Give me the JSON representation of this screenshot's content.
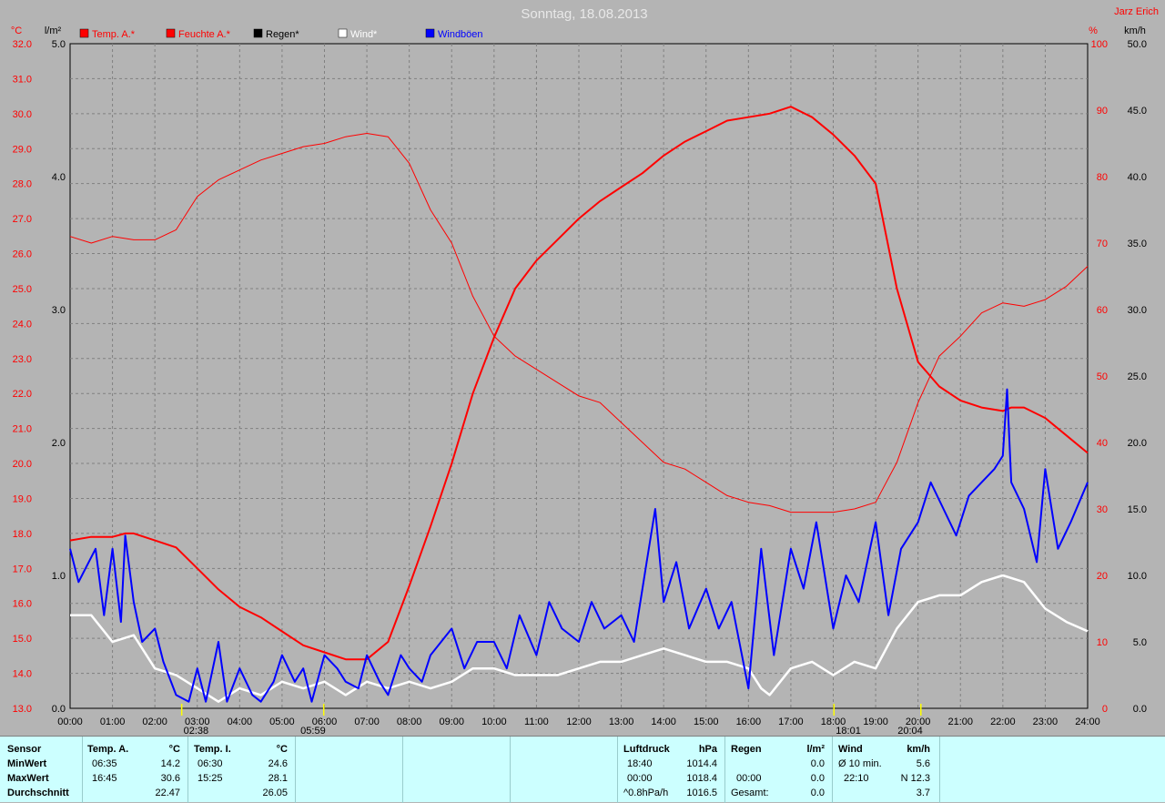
{
  "title": "Sonntag, 18.08.2013",
  "author": "Jarz Erich",
  "colors": {
    "background": "#b4b4b4",
    "temp": "#ff0000",
    "humidity": "#ff0000",
    "rain": "#000000",
    "wind": "#ffffff",
    "gusts": "#0000ff",
    "grid": "#808080",
    "stats_bg": "#ccffff"
  },
  "chart_data": {
    "type": "line",
    "x_ticks": [
      "00:00",
      "01:00",
      "02:00",
      "03:00",
      "04:00",
      "05:00",
      "06:00",
      "07:00",
      "08:00",
      "09:00",
      "10:00",
      "11:00",
      "12:00",
      "13:00",
      "14:00",
      "15:00",
      "16:00",
      "17:00",
      "18:00",
      "19:00",
      "20:00",
      "21:00",
      "22:00",
      "23:00",
      "24:00"
    ],
    "axes": {
      "temp": {
        "label": "°C",
        "min": 13,
        "max": 32,
        "ticks": [
          "13.0",
          "14.0",
          "15.0",
          "16.0",
          "17.0",
          "18.0",
          "19.0",
          "20.0",
          "21.0",
          "22.0",
          "23.0",
          "24.0",
          "25.0",
          "26.0",
          "27.0",
          "28.0",
          "29.0",
          "30.0",
          "31.0",
          "32.0"
        ]
      },
      "rain": {
        "label": "l/m²",
        "min": 0,
        "max": 5,
        "ticks": [
          "0.0",
          "1.0",
          "2.0",
          "3.0",
          "4.0",
          "5.0"
        ]
      },
      "humidity": {
        "label": "%",
        "min": 0,
        "max": 100,
        "ticks": [
          "0",
          "10",
          "20",
          "30",
          "40",
          "50",
          "60",
          "70",
          "80",
          "90",
          "100"
        ]
      },
      "wind": {
        "label": "km/h",
        "min": 0,
        "max": 50,
        "ticks": [
          "0.0",
          "5.0",
          "10.0",
          "15.0",
          "20.0",
          "25.0",
          "30.0",
          "35.0",
          "40.0",
          "45.0",
          "50.0"
        ]
      }
    },
    "legend": [
      {
        "label": "Temp. A.*",
        "color": "#ff0000"
      },
      {
        "label": "Feuchte A.*",
        "color": "#ff0000"
      },
      {
        "label": "Regen*",
        "color": "#000000"
      },
      {
        "label": "Wind*",
        "color": "#ffffff"
      },
      {
        "label": "Windböen",
        "color": "#0000ff"
      }
    ],
    "events": [
      {
        "label": "02:38",
        "hour": 2.633
      },
      {
        "label": "05:59",
        "hour": 5.983
      },
      {
        "label": "18:01",
        "hour": 18.017
      },
      {
        "label": "20:04",
        "hour": 20.067
      }
    ],
    "series": [
      {
        "name": "Temp. A.",
        "color": "#ff0000",
        "axis": "temp",
        "width": 2,
        "x": [
          0,
          0.5,
          1,
          1.3,
          1.5,
          2,
          2.5,
          3,
          3.5,
          4,
          4.5,
          5,
          5.5,
          6,
          6.5,
          7,
          7.5,
          8,
          8.5,
          9,
          9.5,
          10,
          10.5,
          11,
          11.5,
          12,
          12.5,
          13,
          13.5,
          14,
          14.5,
          15,
          15.5,
          16,
          16.5,
          17,
          17.5,
          18,
          18.5,
          19,
          19.5,
          20,
          20.5,
          21,
          21.5,
          22,
          22.2,
          22.5,
          23,
          23.5,
          24
        ],
        "y": [
          17.8,
          17.9,
          17.9,
          18.0,
          18.0,
          17.8,
          17.6,
          17.0,
          16.4,
          15.9,
          15.6,
          15.2,
          14.8,
          14.6,
          14.4,
          14.4,
          14.9,
          16.5,
          18.2,
          20.0,
          22.0,
          23.6,
          25.0,
          25.8,
          26.4,
          27.0,
          27.5,
          27.9,
          28.3,
          28.8,
          29.2,
          29.5,
          29.8,
          29.9,
          30.0,
          30.2,
          29.9,
          29.4,
          28.8,
          28.0,
          25.0,
          22.9,
          22.2,
          21.8,
          21.6,
          21.5,
          21.6,
          21.6,
          21.3,
          20.8,
          20.3
        ]
      },
      {
        "name": "Feuchte A.",
        "color": "#ff0000",
        "axis": "humidity",
        "width": 1,
        "x": [
          0,
          0.5,
          1,
          1.5,
          2,
          2.5,
          3,
          3.5,
          4,
          4.5,
          5,
          5.5,
          6,
          6.5,
          7,
          7.5,
          8,
          8.5,
          9,
          9.5,
          10,
          10.5,
          11,
          11.5,
          12,
          12.5,
          13,
          13.5,
          14,
          14.5,
          15,
          15.5,
          16,
          16.5,
          17,
          17.5,
          18,
          18.5,
          19,
          19.5,
          20,
          20.5,
          21,
          21.5,
          22,
          22.5,
          23,
          23.5,
          24
        ],
        "y": [
          71,
          70,
          71,
          70.5,
          70.5,
          72,
          77,
          79.5,
          81,
          82.5,
          83.5,
          84.5,
          85,
          86,
          86.5,
          86,
          82,
          75,
          70,
          62,
          56,
          53,
          51,
          49,
          47,
          46,
          43,
          40,
          37,
          36,
          34,
          32,
          31,
          30.5,
          29.5,
          29.5,
          29.5,
          30,
          31,
          37,
          46,
          53,
          56,
          59.5,
          61,
          60.5,
          61.5,
          63.5,
          66.5
        ]
      },
      {
        "name": "Wind",
        "color": "#ffffff",
        "axis": "wind",
        "width": 2.5,
        "x": [
          0,
          0.5,
          1,
          1.5,
          2,
          2.5,
          3,
          3.5,
          4,
          4.5,
          5,
          5.5,
          6,
          6.5,
          7,
          7.5,
          8,
          8.5,
          9,
          9.5,
          10,
          10.5,
          11,
          11.5,
          12,
          12.5,
          13,
          13.5,
          14,
          14.5,
          15,
          15.5,
          16,
          16.3,
          16.5,
          17,
          17.5,
          18,
          18.5,
          19,
          19.5,
          20,
          20.5,
          21,
          21.5,
          22,
          22.5,
          23,
          23.5,
          24
        ],
        "y": [
          7,
          7,
          5,
          5.5,
          3,
          2.5,
          1.5,
          0.5,
          1.5,
          1,
          2,
          1.5,
          2,
          1,
          2,
          1.5,
          2,
          1.5,
          2,
          3,
          3,
          2.5,
          2.5,
          2.5,
          3,
          3.5,
          3.5,
          4,
          4.5,
          4,
          3.5,
          3.5,
          3,
          1.5,
          1,
          3,
          3.5,
          2.5,
          3.5,
          3,
          6,
          8,
          8.5,
          8.5,
          9.5,
          10,
          9.5,
          7.5,
          6.5,
          5.8
        ]
      },
      {
        "name": "Windböen",
        "color": "#0000ff",
        "axis": "wind",
        "width": 2,
        "x": [
          0,
          0.2,
          0.6,
          0.8,
          1,
          1.2,
          1.3,
          1.5,
          1.7,
          2,
          2.2,
          2.5,
          2.8,
          3,
          3.2,
          3.5,
          3.7,
          4,
          4.3,
          4.5,
          4.8,
          5,
          5.3,
          5.5,
          5.7,
          6,
          6.3,
          6.5,
          6.8,
          7,
          7.3,
          7.5,
          7.8,
          8,
          8.3,
          8.5,
          9,
          9.3,
          9.6,
          10,
          10.3,
          10.6,
          11,
          11.3,
          11.6,
          12,
          12.3,
          12.6,
          13,
          13.3,
          13.6,
          13.8,
          14,
          14.3,
          14.6,
          15,
          15.3,
          15.6,
          16,
          16.3,
          16.6,
          17,
          17.3,
          17.6,
          18,
          18.3,
          18.6,
          19,
          19.3,
          19.6,
          20,
          20.3,
          20.6,
          20.9,
          21.2,
          21.5,
          21.8,
          22,
          22.1,
          22.2,
          22.5,
          22.8,
          23,
          23.3,
          23.6,
          24
        ],
        "y": [
          12,
          9.5,
          12,
          7,
          12,
          6.5,
          13,
          8,
          5,
          6,
          3.5,
          1,
          0.5,
          3,
          0.5,
          5,
          0.5,
          3,
          1,
          0.5,
          2,
          4,
          2,
          3,
          0.5,
          4,
          3,
          2,
          1.5,
          4,
          2,
          1,
          4,
          3,
          2,
          4,
          6,
          3,
          5,
          5,
          3,
          7,
          4,
          8,
          6,
          5,
          8,
          6,
          7,
          5,
          11,
          15,
          8,
          11,
          6,
          9,
          6,
          8,
          1.5,
          12,
          4,
          12,
          9,
          14,
          6,
          10,
          8,
          14,
          7,
          12,
          14,
          17,
          15,
          13,
          16,
          17,
          18,
          19,
          24,
          17,
          15,
          11,
          18,
          12,
          14,
          17
        ]
      },
      {
        "name": "Regen",
        "color": "#000000",
        "axis": "rain",
        "width": 1,
        "x": [
          0,
          24
        ],
        "y": [
          0,
          0
        ]
      }
    ]
  },
  "stats": {
    "sensor": {
      "header": "Sensor",
      "rows": [
        "MinWert",
        "MaxWert",
        "Durchschnitt"
      ]
    },
    "temp_a": {
      "header": "Temp. A.",
      "unit": "°C",
      "rows": [
        [
          "06:35",
          "14.2"
        ],
        [
          "16:45",
          "30.6"
        ],
        [
          "",
          "22.47"
        ]
      ]
    },
    "temp_i": {
      "header": "Temp. I.",
      "unit": "°C",
      "rows": [
        [
          "06:30",
          "24.6"
        ],
        [
          "15:25",
          "28.1"
        ],
        [
          "",
          "26.05"
        ]
      ]
    },
    "pressure": {
      "header": "Luftdruck",
      "unit": "hPa",
      "rows": [
        [
          "18:40",
          "1014.4"
        ],
        [
          "00:00",
          "1018.4"
        ],
        [
          "^0.8hPa/h",
          "1016.5"
        ]
      ]
    },
    "rain": {
      "header": "Regen",
      "unit": "l/m²",
      "rows": [
        [
          "",
          ""
        ],
        [
          "00:00",
          "0.0"
        ],
        [
          "Gesamt:",
          "0.0"
        ]
      ],
      "first_value": "0.0"
    },
    "wind": {
      "header": "Wind",
      "unit": "km/h",
      "rows": [
        [
          "Ø 10 min.",
          "5.6"
        ],
        [
          "22:10",
          "N 12.3"
        ],
        [
          "",
          "3.7"
        ]
      ]
    }
  }
}
